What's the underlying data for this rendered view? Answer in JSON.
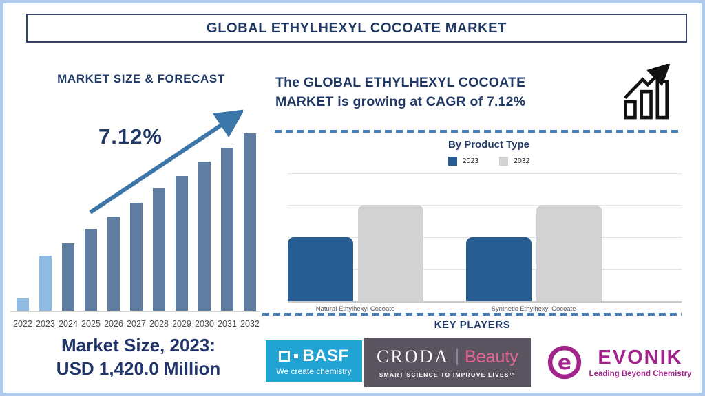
{
  "page": {
    "title": "GLOBAL ETHYLHEXYL COCOATE MARKET"
  },
  "left_panel": {
    "heading": "MARKET SIZE & FORECAST",
    "cagr_label": "7.12%",
    "market_size_line1": "Market Size, 2023:",
    "market_size_line2": "USD 1,420.0 Million"
  },
  "right_panel": {
    "headline": "The GLOBAL ETHYLHEXYL COCOATE MARKET is growing at CAGR of 7.12%",
    "key_players": {
      "heading": "KEY PLAYERS",
      "basf": {
        "name": "BASF",
        "tagline": "We create chemistry"
      },
      "croda": {
        "name": "CRODA",
        "sub_brand": "Beauty",
        "tagline": "SMART SCIENCE TO IMPROVE LIVES™"
      },
      "evonik": {
        "name": "EVONIK",
        "tagline": "Leading Beyond Chemistry"
      }
    }
  },
  "colors": {
    "navy_text": "#1F3864",
    "arrow_steel_blue": "#3D76A8",
    "actual_bar_light_blue": "#8FBBE3",
    "forecast_bar_slate_blue": "#5E7DA0",
    "series_2023_blue": "#275D93",
    "series_2032_gray": "#D2D2D2",
    "dashed_separator_blue": "#4182BE",
    "frame_border_light_blue": "#AECBEB",
    "basf_bg": "#21A3D4",
    "croda_bg": "#59545F",
    "croda_pink": "#E8679A",
    "evonik_magenta": "#A3258C"
  },
  "chart_data": [
    {
      "id": "market_size_forecast",
      "type": "bar",
      "title": "MARKET SIZE & FORECAST",
      "categories": [
        "2022",
        "2023",
        "2024",
        "2025",
        "2026",
        "2027",
        "2028",
        "2029",
        "2030",
        "2031",
        "2032"
      ],
      "values_relative_pct": [
        7,
        31,
        38,
        46,
        53,
        61,
        69,
        76,
        84,
        92,
        100
      ],
      "y_axis": "unlabeled (illustrative heights, normalized to 2032 = 100)",
      "cagr_pct": 7.12,
      "market_size_2023_usd_million": 1420.0,
      "annotations": [
        "7.12%",
        "Market Size, 2023: USD 1,420.0 Million"
      ],
      "actual_years": [
        "2022",
        "2023"
      ],
      "legend_position": "none",
      "grid": false
    },
    {
      "id": "by_product_type",
      "type": "bar",
      "title": "By Product Type",
      "categories": [
        "Natural Ethylhexyl Cocoate",
        "Synthetic Ethylhexyl Cocoate"
      ],
      "series": [
        {
          "name": "2023",
          "values_relative_pct": [
            50,
            50
          ]
        },
        {
          "name": "2032",
          "values_relative_pct": [
            75,
            75
          ]
        }
      ],
      "y_axis": "unlabeled (relative heights, % of plot height)",
      "legend_position": "top",
      "grid": true
    }
  ]
}
